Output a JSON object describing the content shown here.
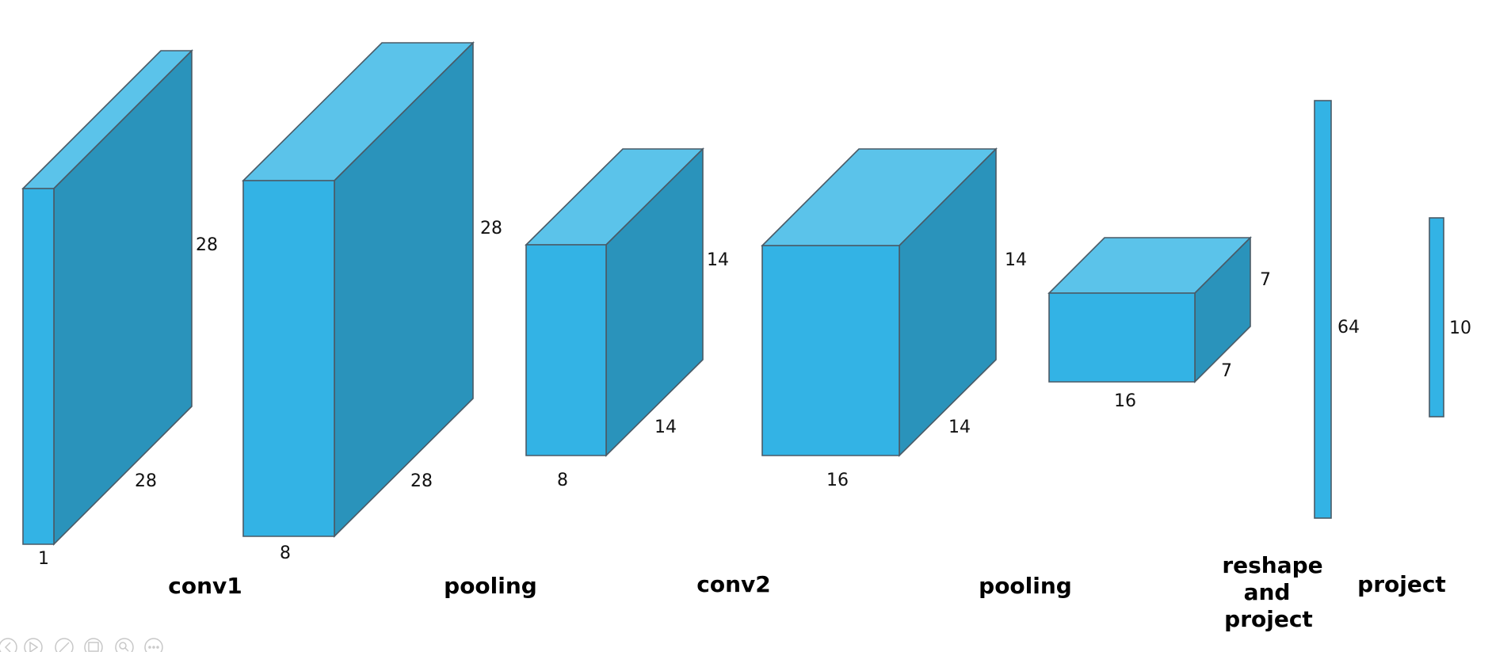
{
  "layers": [
    {
      "id": "input",
      "dims": [
        "28",
        "28",
        "1"
      ]
    },
    {
      "id": "conv1",
      "dims": [
        "28",
        "28",
        "8"
      ]
    },
    {
      "id": "pool1",
      "dims": [
        "14",
        "14",
        "8"
      ]
    },
    {
      "id": "conv2",
      "dims": [
        "14",
        "14",
        "16"
      ]
    },
    {
      "id": "pool2",
      "dims": [
        "7",
        "7",
        "16"
      ]
    },
    {
      "id": "fc1",
      "dims": [
        "64"
      ]
    },
    {
      "id": "fc2",
      "dims": [
        "10"
      ]
    }
  ],
  "stages": {
    "conv1": "conv1",
    "pooling1": "pooling",
    "conv2": "conv2",
    "pooling2": "pooling",
    "reshape": [
      "reshape",
      "and",
      "project"
    ],
    "project": "project"
  },
  "toolbar": {
    "icons": [
      "back-icon",
      "play-icon",
      "edit-icon",
      "save-icon",
      "zoom-icon",
      "more-icon"
    ]
  },
  "colors": {
    "front": "#33b3e5",
    "top": "#5bc3ea",
    "side": "#2a93bb",
    "edge": "#4a5a66"
  }
}
